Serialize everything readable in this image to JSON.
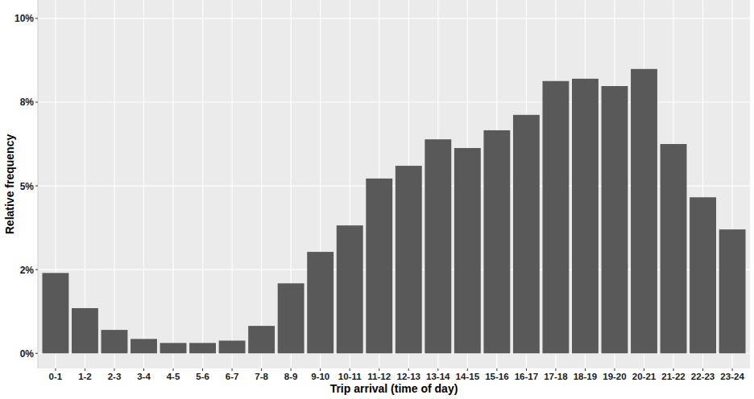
{
  "chart_data": {
    "type": "bar",
    "x_label": "Trip arrival (time of day)",
    "y_label": "Relative frequency",
    "categories": [
      "0-1",
      "1-2",
      "2-3",
      "3-4",
      "4-5",
      "5-6",
      "6-7",
      "7-8",
      "8-9",
      "9-10",
      "10-11",
      "11-12",
      "12-13",
      "13-14",
      "14-15",
      "15-16",
      "16-17",
      "17-18",
      "18-19",
      "19-20",
      "20-21",
      "21-22",
      "22-23",
      "23-24"
    ],
    "values": [
      2.4,
      1.35,
      0.7,
      0.43,
      0.31,
      0.31,
      0.38,
      0.82,
      2.09,
      3.03,
      3.82,
      5.22,
      5.6,
      6.39,
      6.13,
      6.66,
      7.12,
      8.13,
      8.2,
      7.98,
      8.49,
      6.25,
      4.66,
      3.7
    ],
    "color": "#595959",
    "ylim": [
      -0.45,
      10.55
    ],
    "yticks": [
      {
        "value": 0,
        "label": "0%"
      },
      {
        "value": 2.5,
        "label": "2%"
      },
      {
        "value": 5,
        "label": "5%"
      },
      {
        "value": 7.5,
        "label": "8%"
      },
      {
        "value": 10,
        "label": "10%"
      }
    ],
    "grid": true
  }
}
